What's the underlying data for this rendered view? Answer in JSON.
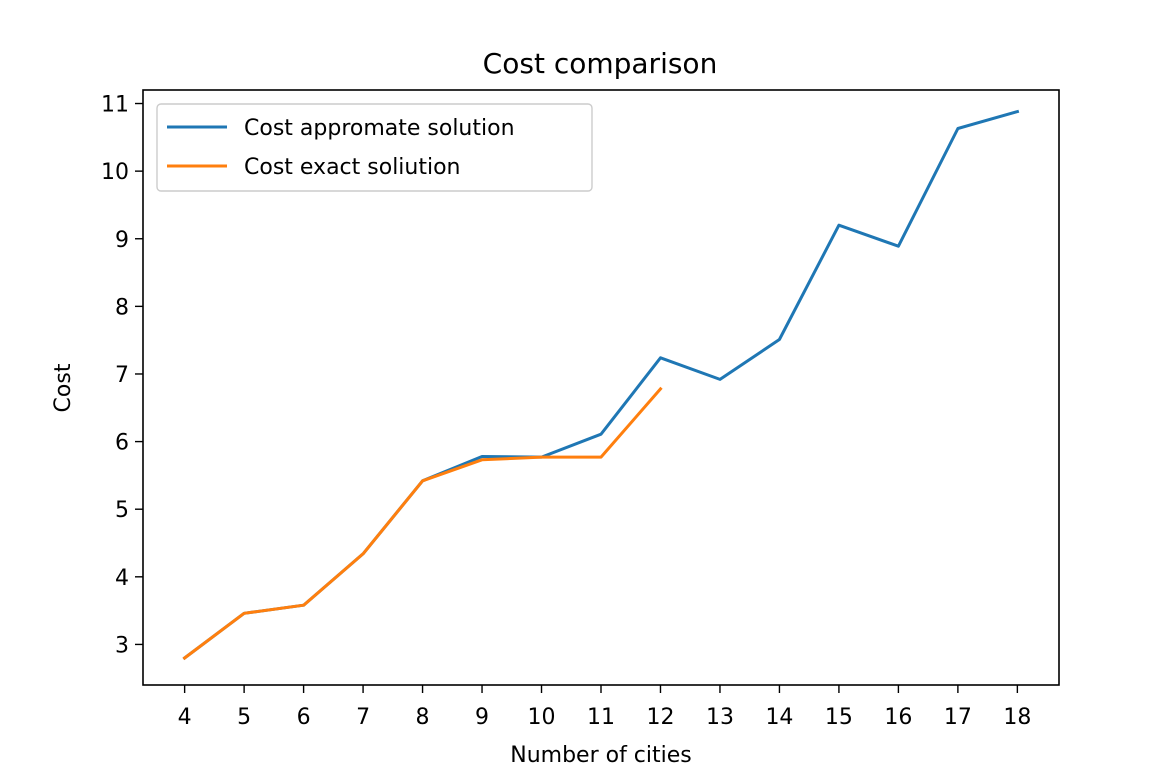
{
  "chart_data": {
    "type": "line",
    "title": "Cost comparison",
    "xlabel": "Number of cities",
    "ylabel": "Cost",
    "xlim": [
      3.3,
      18.7
    ],
    "ylim": [
      2.4,
      11.2
    ],
    "xticks": [
      4,
      5,
      6,
      7,
      8,
      9,
      10,
      11,
      12,
      13,
      14,
      15,
      16,
      17,
      18
    ],
    "yticks": [
      3,
      4,
      5,
      6,
      7,
      8,
      9,
      10,
      11
    ],
    "grid": false,
    "legend_position": "top-left",
    "series": [
      {
        "name": "Cost appromate solution",
        "color": "#1f77b4",
        "x": [
          4,
          5,
          6,
          7,
          8,
          9,
          10,
          11,
          12,
          13,
          14,
          15,
          16,
          17,
          18
        ],
        "y": [
          2.8,
          3.46,
          3.58,
          4.34,
          5.42,
          5.78,
          5.77,
          6.11,
          7.24,
          6.92,
          7.51,
          9.2,
          8.89,
          10.63,
          10.88
        ]
      },
      {
        "name": "Cost exact soliution",
        "color": "#ff7f0e",
        "x": [
          4,
          5,
          6,
          7,
          8,
          9,
          10,
          11,
          12
        ],
        "y": [
          2.8,
          3.46,
          3.58,
          4.34,
          5.42,
          5.73,
          5.77,
          5.77,
          6.78
        ]
      }
    ]
  }
}
